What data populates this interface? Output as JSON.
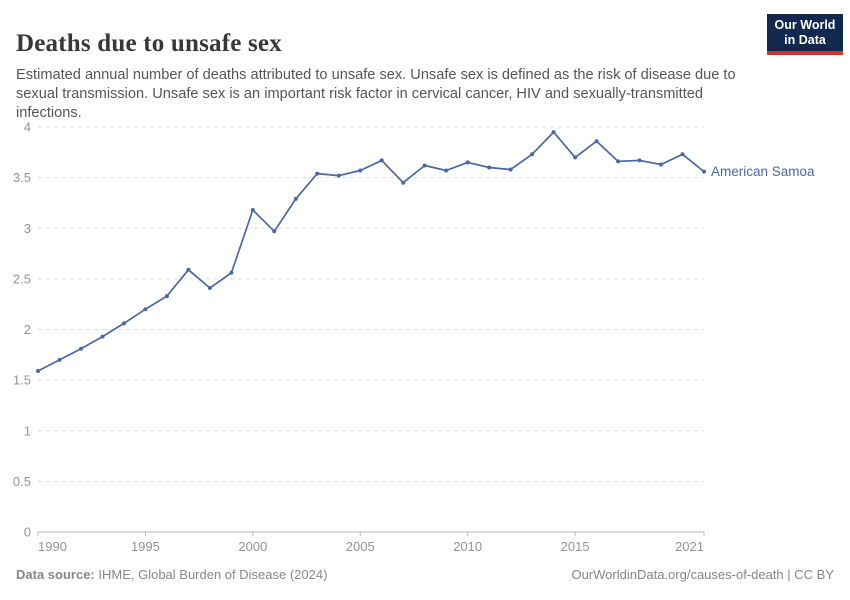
{
  "logo": {
    "line1": "Our World",
    "line2": "in Data",
    "bg_color": "#12294d",
    "accent_color": "#d0342c"
  },
  "chart_data": {
    "type": "line",
    "title": "Deaths due to unsafe sex",
    "subtitle": "Estimated annual number of deaths attributed to unsafe sex. Unsafe sex is defined as the risk of disease due to sexual transmission. Unsafe sex is an important risk factor in cervical cancer, HIV and sexually-transmitted infections.",
    "xlabel": "",
    "ylabel": "",
    "xlim": [
      1990,
      2021
    ],
    "ylim": [
      0,
      4
    ],
    "xticks": [
      1990,
      1995,
      2000,
      2005,
      2010,
      2015,
      2021
    ],
    "yticks": [
      0,
      0.5,
      1,
      1.5,
      2,
      2.5,
      3,
      3.5,
      4
    ],
    "grid": "horizontal-dashed",
    "legend_position": "end-of-line-label",
    "x": [
      1990,
      1991,
      1992,
      1993,
      1994,
      1995,
      1996,
      1997,
      1998,
      1999,
      2000,
      2001,
      2002,
      2003,
      2004,
      2005,
      2006,
      2007,
      2008,
      2009,
      2010,
      2011,
      2012,
      2013,
      2014,
      2015,
      2016,
      2017,
      2018,
      2019,
      2020,
      2021
    ],
    "series": [
      {
        "name": "American Samoa",
        "color": "#4a68a2",
        "values": [
          1.59,
          1.7,
          1.81,
          1.93,
          2.06,
          2.2,
          2.33,
          2.59,
          2.41,
          2.56,
          3.18,
          2.97,
          3.29,
          3.54,
          3.52,
          3.57,
          3.67,
          3.45,
          3.62,
          3.57,
          3.65,
          3.6,
          3.58,
          3.73,
          3.95,
          3.7,
          3.86,
          3.66,
          3.67,
          3.63,
          3.73,
          3.56
        ]
      }
    ],
    "gridline_color": "#dcdcdc",
    "axis_color": "#b8b8b8"
  },
  "footer": {
    "source_label": "Data source:",
    "source_text": " IHME, Global Burden of Disease (2024)",
    "credit": "OurWorldinData.org/causes-of-death | CC BY"
  }
}
